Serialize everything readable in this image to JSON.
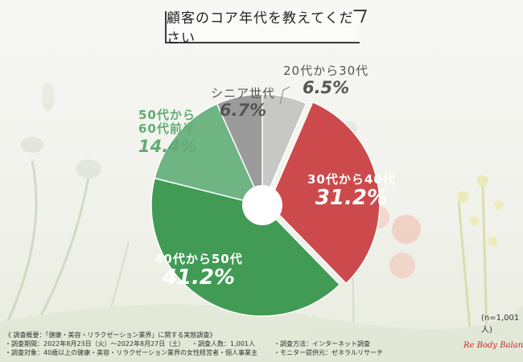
{
  "title": "顧客のコア年代を教えてください",
  "sample_size": "(n=1,001人)",
  "footer": {
    "overview": "《 調査概要：「健康・美容・リラクゼーション業界」に関する実態調査》",
    "period": "・調査期間：2022年8月23日（火）〜2022年8月27日（土）",
    "people": "・調査人数：1,001人",
    "method": "・調査方法：インターネット調査",
    "target": "・調査対象：40歳以上の健康・美容・リラクゼーション業界の女性経営者・個人事業主",
    "provider": "・モニター提供元：ゼネラルリサーチ"
  },
  "logo_text": "Re Body Balance",
  "chart_data": {
    "type": "pie",
    "title": "顧客のコア年代を教えてください",
    "donut": true,
    "series": [
      {
        "name": "20代から30代",
        "value": 6.5,
        "label": "6.5%",
        "color": "#c7c7c5"
      },
      {
        "name": "30代から40代",
        "value": 31.2,
        "label": "31.2%",
        "color": "#cc4a4c"
      },
      {
        "name": "40代から50代",
        "value": 41.2,
        "label": "41.2%",
        "color": "#419b55"
      },
      {
        "name": "50代から60代前半",
        "value": 14.4,
        "label": "14.4%",
        "color": "#6fb584"
      },
      {
        "name": "シニア世代",
        "value": 6.7,
        "label": "6.7%",
        "color": "#9b9b9b"
      }
    ]
  }
}
